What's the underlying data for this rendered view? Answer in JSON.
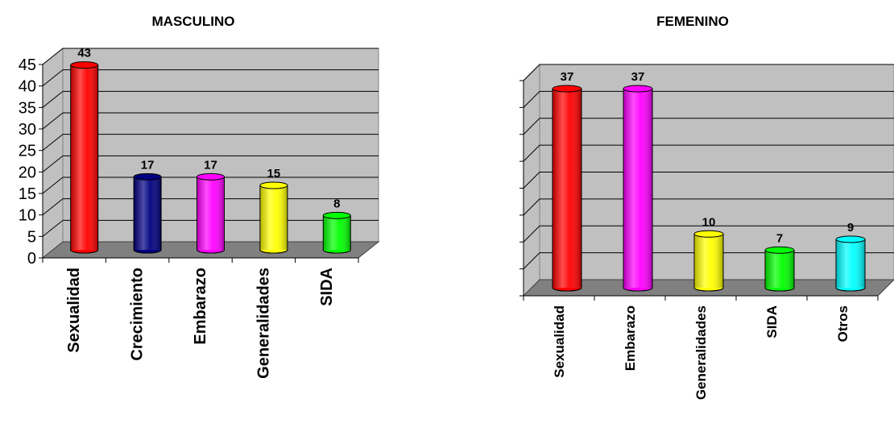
{
  "chart_data": [
    {
      "type": "bar",
      "title": "MASCULINO",
      "categories": [
        "Sexualidad",
        "Crecimiento",
        "Embarazo",
        "Generalidades",
        "SIDA"
      ],
      "values": [
        43,
        17,
        17,
        15,
        8
      ],
      "colors": [
        "#ff0000",
        "#000080",
        "#ff00ff",
        "#ffff00",
        "#00ff00"
      ],
      "ylim": [
        0,
        45
      ],
      "yticks": [
        "0",
        "5",
        "10",
        "15",
        "20",
        "25",
        "30",
        "35",
        "40",
        "45"
      ],
      "grid": true,
      "xlabel": "",
      "ylabel": ""
    },
    {
      "type": "bar",
      "title": "FEMENINO",
      "categories": [
        "Sexualidad",
        "Embarazo",
        "Generalidades",
        "SIDA",
        "Otros"
      ],
      "values": [
        37,
        37,
        10,
        7,
        9
      ],
      "colors": [
        "#ff0000",
        "#ff00ff",
        "#ffff00",
        "#00ff00",
        "#00ffff"
      ],
      "ylim": [
        0,
        40
      ],
      "yticks": [],
      "grid": true,
      "xlabel": "",
      "ylabel": ""
    }
  ]
}
